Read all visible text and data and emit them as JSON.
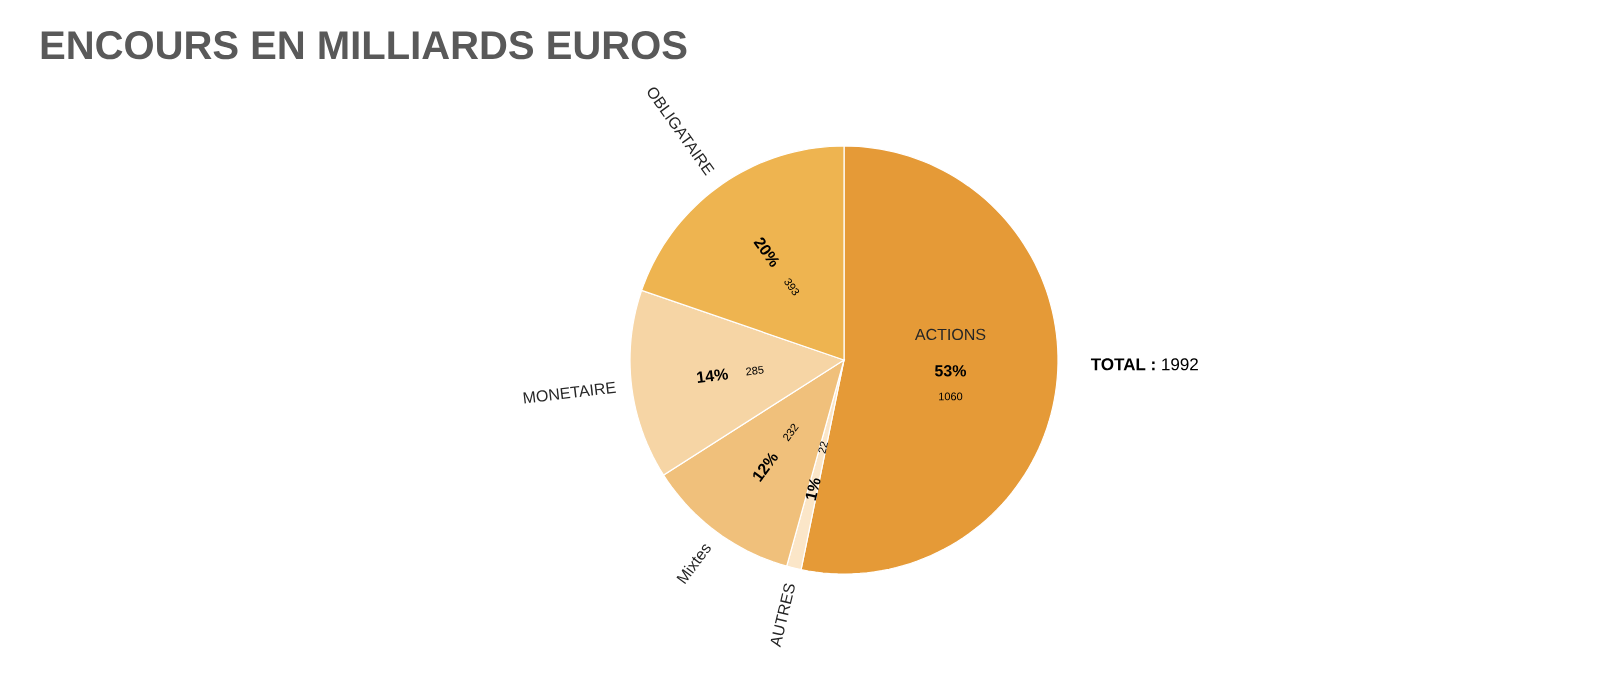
{
  "chart_data": {
    "type": "pie",
    "title": "ENCOURS EN MILLIARDS EUROS",
    "categories": [
      "ACTIONS",
      "AUTRES",
      "Mixtes",
      "MONETAIRE",
      "OBLIGATAIRE"
    ],
    "values": [
      1060,
      22,
      232,
      285,
      393
    ],
    "colors": [
      "#e59a37",
      "#fbe6c8",
      "#f0c07b",
      "#f6d5a5",
      "#eeb450"
    ],
    "data_labels": true,
    "annotations": [
      "**TOTAL :** 1992",
      {
        "text": "53%",
        "x": "ACTIONS"
      },
      {
        "text": "1%",
        "x": "AUTRES"
      },
      {
        "text": "12%",
        "x": "Mixtes"
      },
      {
        "text": "14%",
        "x": "MONETAIRE"
      },
      {
        "text": "20%",
        "x": "OBLIGATAIRE"
      }
    ]
  }
}
